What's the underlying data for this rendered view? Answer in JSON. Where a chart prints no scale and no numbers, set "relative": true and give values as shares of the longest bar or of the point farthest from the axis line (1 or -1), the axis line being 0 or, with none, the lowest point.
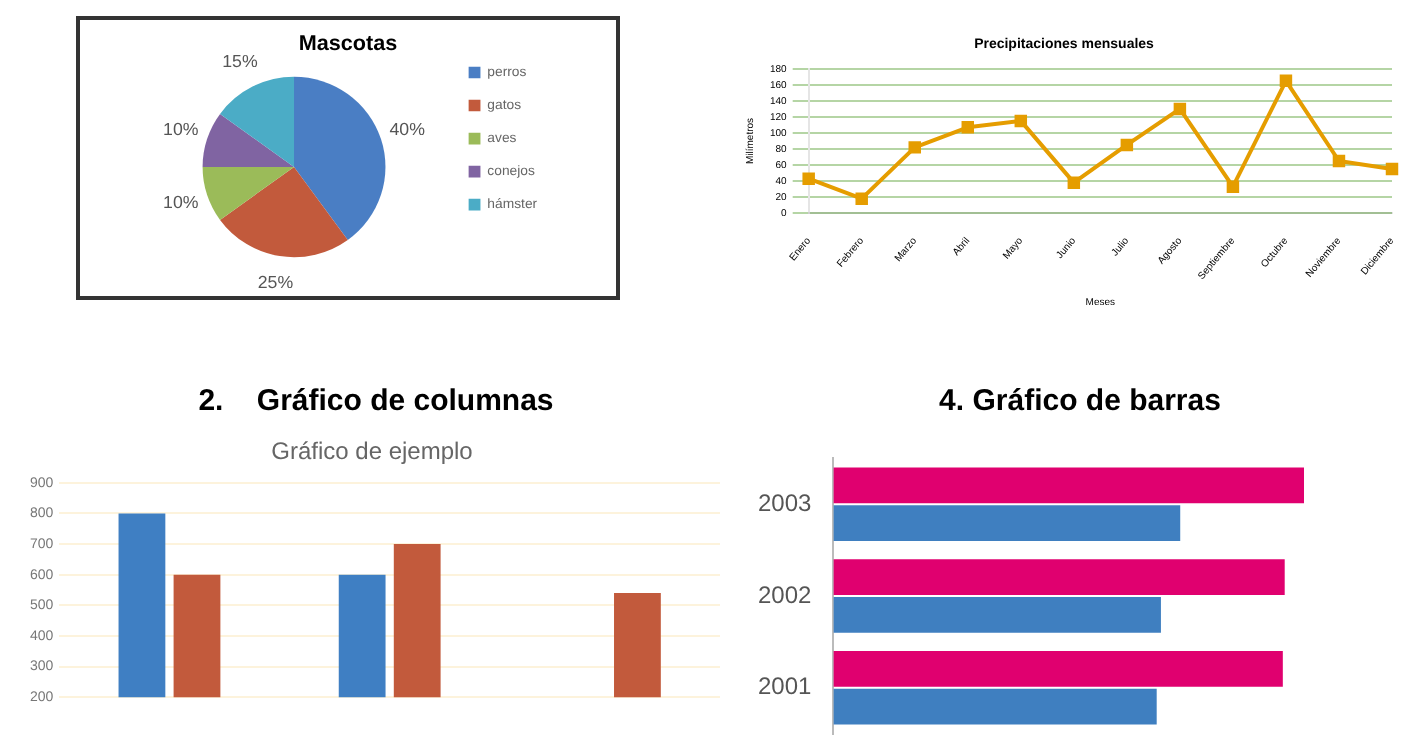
{
  "chart_data": [
    {
      "type": "pie",
      "title": "Mascotas",
      "categories": [
        "perros",
        "gatos",
        "aves",
        "conejos",
        "hámster"
      ],
      "values": [
        40,
        25,
        10,
        10,
        15
      ],
      "colors": [
        "#4a7ec4",
        "#c25a3c",
        "#9bbb59",
        "#8064a2",
        "#4bacc6"
      ],
      "value_labels": [
        "40%",
        "25%",
        "10%",
        "10%",
        "15%"
      ],
      "legend": "right"
    },
    {
      "type": "line",
      "title": "Precipitaciones mensuales",
      "xlabel": "Meses",
      "ylabel": "Milímetros",
      "categories": [
        "Enero",
        "Febrero",
        "Marzo",
        "Abril",
        "Mayo",
        "Junio",
        "Julio",
        "Agosto",
        "Septiembre",
        "Octubre",
        "Noviembre",
        "Diciembre"
      ],
      "series": [
        {
          "color": "#e59d00",
          "values": [
            43,
            18,
            82,
            107,
            115,
            38,
            85,
            130,
            33,
            165,
            65,
            55
          ]
        }
      ],
      "ylim": [
        0,
        180
      ],
      "yticks": [
        0,
        20,
        40,
        60,
        80,
        100,
        120,
        140,
        160,
        180
      ],
      "grid": "y",
      "marker": "square",
      "line_style": "solid"
    },
    {
      "type": "bar",
      "title": "2.    Gráfico de columnas",
      "subtitle": "Gráfico de ejemplo",
      "categories": [
        null,
        null,
        null
      ],
      "series": [
        {
          "color": "#3f7fc3",
          "values": [
            800,
            600,
            null
          ]
        },
        {
          "color": "#c25a3c",
          "values": [
            600,
            700,
            540
          ]
        }
      ],
      "ylim": [
        200,
        900
      ],
      "yticks": [
        200,
        300,
        400,
        500,
        600,
        700,
        800,
        900
      ],
      "grid": "y"
    },
    {
      "type": "bar",
      "title": "4. Gráfico de barras",
      "orientation": "horizontal",
      "relative": true,
      "categories": [
        "2003",
        "2002",
        "2001"
      ],
      "series": [
        {
          "color": "#e0006f",
          "values": [
            1,
            0.959,
            0.955
          ]
        },
        {
          "color": "#3f7fc0",
          "values": [
            0.737,
            0.696,
            0.687
          ]
        }
      ]
    }
  ]
}
